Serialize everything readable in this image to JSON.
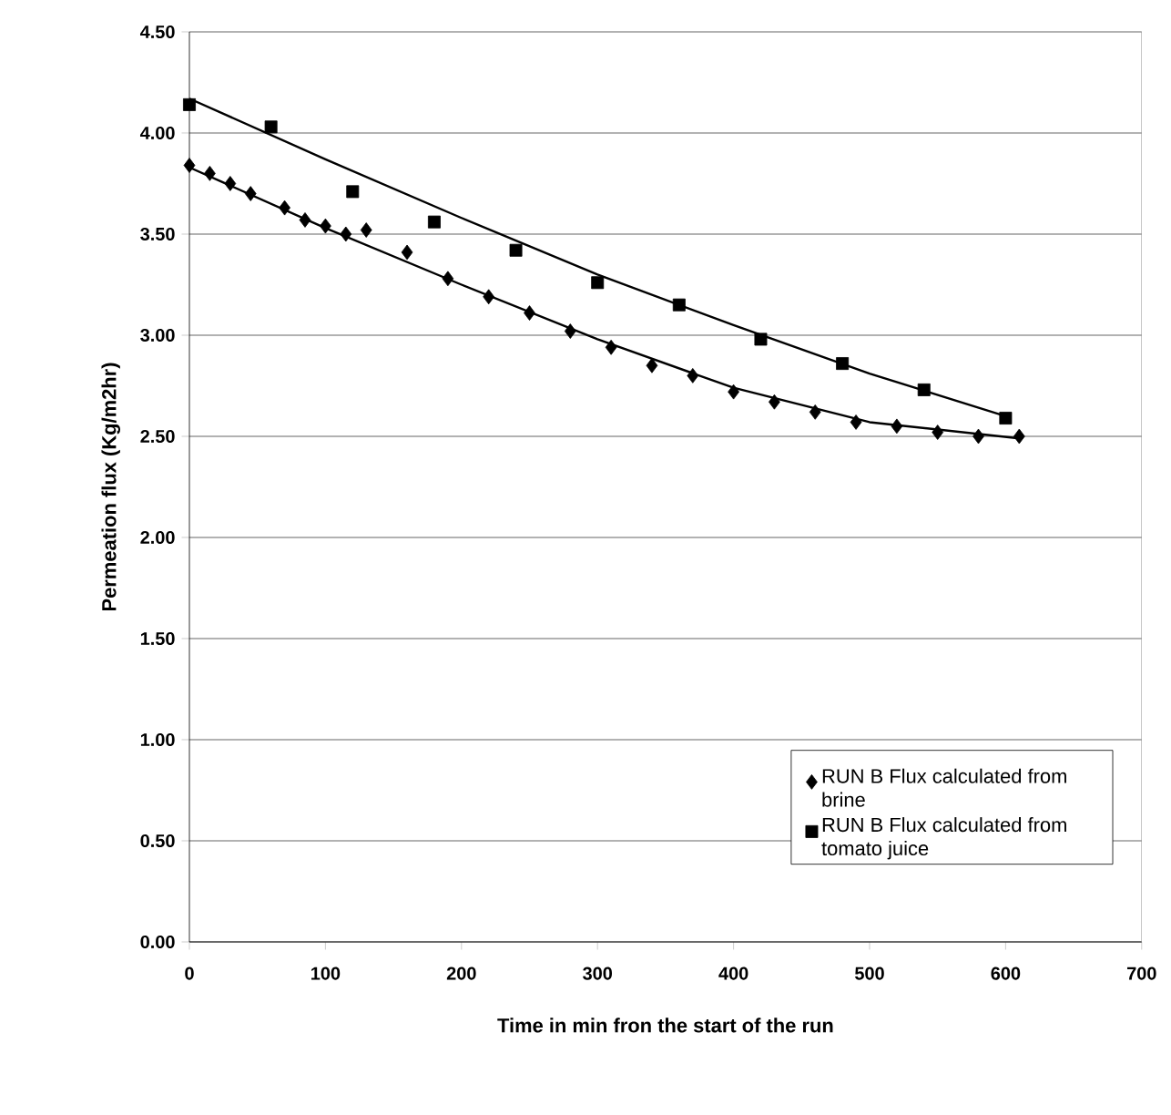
{
  "chart_data": {
    "type": "scatter",
    "xlabel": "Time in min fron the start of the run",
    "ylabel": "Permeation flux (Kg/m2hr)",
    "xlim": [
      0,
      700
    ],
    "xticks": [
      0,
      100,
      200,
      300,
      400,
      500,
      600,
      700
    ],
    "ylim": [
      0,
      4.5
    ],
    "yticks": [
      {
        "value": 0,
        "label": "0.00"
      },
      {
        "value": 0.5,
        "label": "0.50"
      },
      {
        "value": 1,
        "label": "1.00"
      },
      {
        "value": 1.5,
        "label": "1.50"
      },
      {
        "value": 2,
        "label": "2.00"
      },
      {
        "value": 2.5,
        "label": "2.50"
      },
      {
        "value": 3,
        "label": "3.00"
      },
      {
        "value": 3.5,
        "label": "3.50"
      },
      {
        "value": 4,
        "label": "4.00"
      },
      {
        "value": 4.5,
        "label": "4.50"
      }
    ],
    "grid": "y",
    "legend": "bottom right",
    "series": [
      {
        "name": "RUN B  Flux calculated from brine",
        "color": "#000000",
        "marker": "diamond",
        "x": [
          0,
          15,
          30,
          45,
          70,
          85,
          100,
          115,
          130,
          160,
          190,
          220,
          250,
          280,
          310,
          340,
          370,
          400,
          430,
          460,
          490,
          520,
          550,
          580,
          610
        ],
        "values": [
          3.84,
          3.8,
          3.75,
          3.7,
          3.63,
          3.57,
          3.54,
          3.5,
          3.52,
          3.41,
          3.28,
          3.19,
          3.11,
          3.02,
          2.94,
          2.85,
          2.8,
          2.72,
          2.67,
          2.62,
          2.57,
          2.55,
          2.52,
          2.5,
          2.5
        ]
      },
      {
        "name": "RUN B Flux calculated from tomato juice",
        "color": "#000000",
        "marker": "square",
        "x": [
          0,
          60,
          120,
          180,
          240,
          300,
          360,
          420,
          480,
          540,
          600
        ],
        "values": [
          4.14,
          4.03,
          3.71,
          3.56,
          3.42,
          3.26,
          3.15,
          2.98,
          2.86,
          2.73,
          2.59
        ]
      },
      {
        "type": "line",
        "color": "#000000",
        "x": [
          0,
          100,
          200,
          300,
          400,
          500,
          610
        ],
        "values": [
          3.83,
          3.53,
          3.25,
          2.98,
          2.74,
          2.57,
          2.49
        ]
      },
      {
        "type": "line",
        "color": "#000000",
        "x": [
          0,
          100,
          200,
          300,
          400,
          500,
          600
        ],
        "values": [
          4.17,
          3.87,
          3.58,
          3.3,
          3.05,
          2.81,
          2.6
        ]
      }
    ]
  }
}
